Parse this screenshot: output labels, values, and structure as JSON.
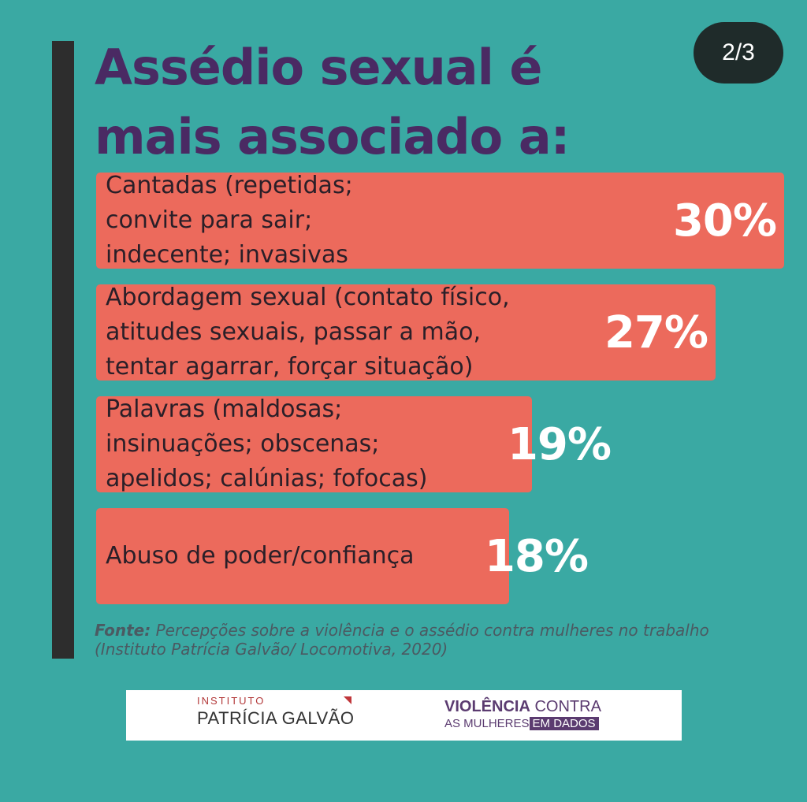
{
  "title": {
    "line1": "Assédio sexual é",
    "line2": "mais associado a:"
  },
  "page_indicator": "2/3",
  "chart_data": {
    "type": "bar",
    "orientation": "horizontal",
    "categories": [
      "Cantadas (repetidas;\nconvite para sair;\nindecente; invasivas",
      "Abordagem sexual (contato físico,\natitudes sexuais, passar a mão,\ntentar agarrar, forçar situação)",
      "Palavras (maldosas;\ninsinuações; obscenas;\napelidos; calúnias; fofocas)",
      "Abuso de poder/confiança"
    ],
    "values": [
      30,
      27,
      19,
      18
    ],
    "value_labels": [
      "30%",
      "27%",
      "19%",
      "18%"
    ],
    "title": "Assédio sexual é mais associado a:",
    "xlim": [
      0,
      30
    ],
    "bar_color": "#ec6a5c"
  },
  "source": {
    "label": "Fonte:",
    "text": " Percepções sobre a violência e o assédio contra mulheres no trabalho (Instituto Patrícia Galvão/ Locomotiva, 2020)"
  },
  "logos": {
    "left_small": "INSTITUTO",
    "left_big": "PATRÍCIA GALVÃO",
    "right_bold": "VIOLÊNCIA",
    "right_rest": " CONTRA",
    "right_line2": "AS MULHERES",
    "right_tag": "EM DADOS"
  },
  "colors": {
    "background": "#3aa9a3",
    "title": "#4a2a63",
    "bar": "#ec6a5c",
    "accent_bar": "#2d2d2d"
  }
}
